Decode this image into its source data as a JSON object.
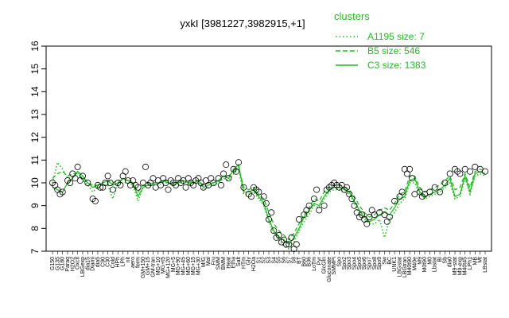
{
  "chart_data": {
    "type": "line",
    "title": "yxkI [3981227,3982915,+1]",
    "xlabel": "",
    "ylabel": "",
    "ylim": [
      7,
      16
    ],
    "yticks": [
      7,
      8,
      9,
      10,
      11,
      12,
      13,
      14,
      15,
      16
    ],
    "grid": false,
    "legend": {
      "title": "clusters",
      "placement": "top-right",
      "entries": [
        {
          "label": "A1195 size: 7",
          "style": "dotted",
          "color": "#22bb22"
        },
        {
          "label": "B5 size: 546",
          "style": "dashed",
          "color": "#22bb22"
        },
        {
          "label": "C3 size: 1383",
          "style": "solid",
          "color": "#22bb22"
        }
      ]
    },
    "x_tick_labels": [
      "G150",
      "G135",
      "G180",
      "Paraq",
      "H2O2",
      "Oxctl",
      "LBGexp",
      "dia15",
      "Diami",
      "dia5",
      "C90",
      "C30",
      "Cold",
      "HPh",
      "LPh",
      "nit",
      "aero",
      "ferm",
      "GM+150",
      "GM+15",
      "GM-tran",
      "MG+10",
      "MG+t5",
      "MG+120",
      "MG+5",
      "MG+90",
      "MG+45",
      "MG+60",
      "MG+15",
      "MG+30",
      "M/G",
      "Mal",
      "Fru",
      "SMM",
      "BMM",
      "Heat",
      "Etha",
      "Salt",
      "HTm",
      "Gly",
      "H2Oa",
      "S1",
      "S2",
      "S3",
      "S4",
      "S5",
      "S6",
      "S7",
      "S8",
      "BT",
      "B60",
      "B36",
      "LoTm",
      "Pyr",
      "GlcGln",
      "Gluconate",
      "SMMPi",
      "Spo",
      "Spo2",
      "Spo3",
      "Spo4",
      "Spo5",
      "Spo6",
      "Spo7",
      "Spo8",
      "Spo9",
      "Sw",
      "BC",
      "UNK1",
      "LBGstat",
      "LBGtran",
      "M40t90",
      "M40e",
      "M9",
      "M0t90",
      "M0",
      "Lbstat",
      "BI",
      "Sb",
      "dia0",
      "M9-stat",
      "M9-exp",
      "M40t45",
      "LPh1",
      "MB",
      "Mt",
      "LBstat"
    ],
    "series": [
      {
        "style": "solid",
        "values": [
          9.8,
          9.7,
          9.6,
          10.0,
          10.2,
          10.5,
          10.3,
          10.0,
          9.8,
          9.9,
          10.0,
          10.1,
          9.9,
          10.0,
          10.2,
          10.1,
          10.0,
          9.4,
          9.8,
          9.9,
          10.0,
          10.0,
          10.1,
          10.0,
          9.9,
          10.0,
          10.1,
          10.0,
          10.0,
          10.1,
          9.8,
          9.9,
          10.0,
          10.1,
          10.3,
          10.2,
          10.6,
          10.8,
          9.6,
          9.6,
          9.7,
          9.4,
          9.1,
          8.4,
          7.9,
          7.6,
          7.5,
          7.3,
          7.6,
          8.0,
          8.5,
          8.8,
          9.1,
          9.0,
          9.4,
          9.7,
          9.8,
          9.8,
          9.7,
          9.6,
          9.2,
          8.8,
          8.5,
          8.3,
          8.4,
          8.6,
          8.7,
          8.6,
          8.9,
          9.3,
          9.4,
          10.1,
          10.2,
          9.6,
          9.4,
          9.5,
          9.6,
          9.7,
          9.9,
          10.2,
          9.4,
          9.5,
          10.3,
          9.6,
          10.4,
          10.5,
          10.4
        ]
      },
      {
        "style": "dashed",
        "values": [
          10.2,
          10.4,
          10.5,
          10.3,
          10.4,
          10.4,
          10.2,
          10.0,
          9.9,
          9.9,
          10.0,
          10.1,
          10.0,
          10.1,
          10.1,
          10.1,
          10.0,
          9.6,
          9.9,
          10.0,
          10.0,
          10.0,
          10.1,
          10.1,
          10.0,
          10.1,
          10.1,
          10.0,
          10.1,
          10.1,
          9.9,
          10.0,
          10.0,
          10.1,
          10.3,
          10.3,
          10.5,
          10.7,
          9.8,
          9.7,
          9.8,
          9.5,
          9.3,
          8.7,
          8.2,
          7.9,
          7.7,
          7.5,
          7.8,
          8.2,
          8.6,
          8.9,
          9.3,
          9.2,
          9.6,
          9.8,
          9.9,
          9.9,
          9.8,
          9.7,
          9.4,
          9.0,
          8.7,
          8.5,
          8.6,
          8.8,
          8.9,
          8.8,
          9.1,
          9.5,
          9.6,
          10.3,
          10.3,
          9.8,
          9.6,
          9.7,
          9.8,
          9.9,
          10.1,
          10.3,
          9.7,
          9.8,
          10.4,
          9.8,
          10.5,
          10.6,
          10.5
        ]
      },
      {
        "style": "dotted",
        "values": [
          10.0,
          10.9,
          10.6,
          10.2,
          10.3,
          10.5,
          10.1,
          9.9,
          9.6,
          9.8,
          9.9,
          9.9,
          9.3,
          10.0,
          10.0,
          10.0,
          9.9,
          9.2,
          9.8,
          9.9,
          9.9,
          9.9,
          10.0,
          10.0,
          9.9,
          10.0,
          10.0,
          9.9,
          10.0,
          10.0,
          9.7,
          9.8,
          9.9,
          10.0,
          10.2,
          10.1,
          10.4,
          10.6,
          9.5,
          9.5,
          9.6,
          9.3,
          9.0,
          8.3,
          7.8,
          7.5,
          7.2,
          7.1,
          7.4,
          7.9,
          8.3,
          8.6,
          9.0,
          8.9,
          9.3,
          9.6,
          9.7,
          9.7,
          9.6,
          9.5,
          9.1,
          8.6,
          8.4,
          8.2,
          8.2,
          8.4,
          7.6,
          8.4,
          8.7,
          9.1,
          9.3,
          10.0,
          10.0,
          9.5,
          9.3,
          9.4,
          9.5,
          9.6,
          9.8,
          10.0,
          9.3,
          9.4,
          10.2,
          9.5,
          10.3,
          10.4,
          10.3
        ]
      }
    ],
    "points": [
      {
        "x": 0,
        "y": 10.0
      },
      {
        "x": 0.5,
        "y": 9.9
      },
      {
        "x": 1,
        "y": 9.7
      },
      {
        "x": 1.5,
        "y": 9.5
      },
      {
        "x": 2,
        "y": 9.6
      },
      {
        "x": 3,
        "y": 10.1
      },
      {
        "x": 3.5,
        "y": 10.0
      },
      {
        "x": 4,
        "y": 10.4
      },
      {
        "x": 4.5,
        "y": 10.2
      },
      {
        "x": 5,
        "y": 10.7
      },
      {
        "x": 5.5,
        "y": 10.1
      },
      {
        "x": 6,
        "y": 10.3
      },
      {
        "x": 7,
        "y": 10.0
      },
      {
        "x": 8,
        "y": 9.3
      },
      {
        "x": 8.5,
        "y": 9.2
      },
      {
        "x": 9,
        "y": 9.9
      },
      {
        "x": 9.5,
        "y": 9.8
      },
      {
        "x": 10,
        "y": 9.8
      },
      {
        "x": 10.5,
        "y": 10.0
      },
      {
        "x": 11,
        "y": 10.3
      },
      {
        "x": 11.5,
        "y": 10.0
      },
      {
        "x": 12,
        "y": 9.7
      },
      {
        "x": 13,
        "y": 10.0
      },
      {
        "x": 13.5,
        "y": 9.9
      },
      {
        "x": 14,
        "y": 10.3
      },
      {
        "x": 14.5,
        "y": 10.5
      },
      {
        "x": 15,
        "y": 10.1
      },
      {
        "x": 15.5,
        "y": 9.9
      },
      {
        "x": 16,
        "y": 10.1
      },
      {
        "x": 16.5,
        "y": 9.9
      },
      {
        "x": 17,
        "y": 9.8
      },
      {
        "x": 18,
        "y": 10.0
      },
      {
        "x": 18.5,
        "y": 10.7
      },
      {
        "x": 19,
        "y": 9.9
      },
      {
        "x": 19.5,
        "y": 10.0
      },
      {
        "x": 20,
        "y": 10.2
      },
      {
        "x": 20.5,
        "y": 9.8
      },
      {
        "x": 21,
        "y": 10.1
      },
      {
        "x": 21.5,
        "y": 9.9
      },
      {
        "x": 22,
        "y": 10.2
      },
      {
        "x": 22.5,
        "y": 10.0
      },
      {
        "x": 23,
        "y": 9.7
      },
      {
        "x": 23.5,
        "y": 10.1
      },
      {
        "x": 24,
        "y": 10.0
      },
      {
        "x": 24.5,
        "y": 9.9
      },
      {
        "x": 25,
        "y": 10.2
      },
      {
        "x": 25.5,
        "y": 10.0
      },
      {
        "x": 26,
        "y": 10.1
      },
      {
        "x": 26.5,
        "y": 9.8
      },
      {
        "x": 27,
        "y": 10.2
      },
      {
        "x": 27.5,
        "y": 10.0
      },
      {
        "x": 28,
        "y": 9.9
      },
      {
        "x": 28.5,
        "y": 10.1
      },
      {
        "x": 29,
        "y": 10.2
      },
      {
        "x": 29.5,
        "y": 10.0
      },
      {
        "x": 30,
        "y": 9.8
      },
      {
        "x": 30.5,
        "y": 10.1
      },
      {
        "x": 31,
        "y": 9.9
      },
      {
        "x": 31.5,
        "y": 10.2
      },
      {
        "x": 32,
        "y": 10.0
      },
      {
        "x": 33,
        "y": 10.2
      },
      {
        "x": 33.5,
        "y": 9.9
      },
      {
        "x": 34,
        "y": 10.4
      },
      {
        "x": 34.5,
        "y": 10.8
      },
      {
        "x": 35,
        "y": 10.2
      },
      {
        "x": 36,
        "y": 10.6
      },
      {
        "x": 36.5,
        "y": 10.5
      },
      {
        "x": 37,
        "y": 10.9
      },
      {
        "x": 38,
        "y": 9.8
      },
      {
        "x": 39,
        "y": 9.5
      },
      {
        "x": 39.5,
        "y": 9.4
      },
      {
        "x": 40,
        "y": 9.8
      },
      {
        "x": 40.5,
        "y": 9.7
      },
      {
        "x": 41,
        "y": 9.6
      },
      {
        "x": 42,
        "y": 9.4
      },
      {
        "x": 42.5,
        "y": 9.1
      },
      {
        "x": 43,
        "y": 8.4
      },
      {
        "x": 43.5,
        "y": 8.7
      },
      {
        "x": 44,
        "y": 7.9
      },
      {
        "x": 44.5,
        "y": 7.6
      },
      {
        "x": 45,
        "y": 7.7
      },
      {
        "x": 45.5,
        "y": 7.4
      },
      {
        "x": 46,
        "y": 7.5
      },
      {
        "x": 46.5,
        "y": 7.3
      },
      {
        "x": 47,
        "y": 7.3
      },
      {
        "x": 47.5,
        "y": 7.6
      },
      {
        "x": 48,
        "y": 7.1
      },
      {
        "x": 48.5,
        "y": 7.3
      },
      {
        "x": 49,
        "y": 8.4
      },
      {
        "x": 50,
        "y": 8.6
      },
      {
        "x": 50.5,
        "y": 8.8
      },
      {
        "x": 51,
        "y": 9.0
      },
      {
        "x": 52,
        "y": 9.3
      },
      {
        "x": 52.5,
        "y": 9.7
      },
      {
        "x": 53,
        "y": 8.8
      },
      {
        "x": 54,
        "y": 9.0
      },
      {
        "x": 54.5,
        "y": 9.7
      },
      {
        "x": 55,
        "y": 9.8
      },
      {
        "x": 55.5,
        "y": 9.9
      },
      {
        "x": 56,
        "y": 10.0
      },
      {
        "x": 56.5,
        "y": 9.9
      },
      {
        "x": 57,
        "y": 9.8
      },
      {
        "x": 57.5,
        "y": 9.9
      },
      {
        "x": 58,
        "y": 9.7
      },
      {
        "x": 58.5,
        "y": 9.8
      },
      {
        "x": 59,
        "y": 9.5
      },
      {
        "x": 59.5,
        "y": 9.3
      },
      {
        "x": 60,
        "y": 9.0
      },
      {
        "x": 60.5,
        "y": 8.7
      },
      {
        "x": 61,
        "y": 8.5
      },
      {
        "x": 61.5,
        "y": 8.6
      },
      {
        "x": 62,
        "y": 8.4
      },
      {
        "x": 62.5,
        "y": 8.2
      },
      {
        "x": 63,
        "y": 8.5
      },
      {
        "x": 63.5,
        "y": 8.8
      },
      {
        "x": 64,
        "y": 8.6
      },
      {
        "x": 65,
        "y": 8.7
      },
      {
        "x": 66,
        "y": 8.6
      },
      {
        "x": 66.5,
        "y": 8.3
      },
      {
        "x": 67,
        "y": 8.5
      },
      {
        "x": 68,
        "y": 9.2
      },
      {
        "x": 69,
        "y": 9.4
      },
      {
        "x": 69.5,
        "y": 9.6
      },
      {
        "x": 70,
        "y": 10.6
      },
      {
        "x": 70.5,
        "y": 10.4
      },
      {
        "x": 71,
        "y": 10.6
      },
      {
        "x": 71.5,
        "y": 10.2
      },
      {
        "x": 72,
        "y": 9.5
      },
      {
        "x": 73,
        "y": 9.6
      },
      {
        "x": 73.5,
        "y": 9.4
      },
      {
        "x": 74,
        "y": 9.5
      },
      {
        "x": 75,
        "y": 9.6
      },
      {
        "x": 76,
        "y": 9.8
      },
      {
        "x": 77,
        "y": 9.6
      },
      {
        "x": 78,
        "y": 10.0
      },
      {
        "x": 79,
        "y": 10.4
      },
      {
        "x": 80,
        "y": 10.6
      },
      {
        "x": 80.5,
        "y": 10.5
      },
      {
        "x": 81,
        "y": 10.4
      },
      {
        "x": 82,
        "y": 10.6
      },
      {
        "x": 83,
        "y": 10.5
      },
      {
        "x": 84,
        "y": 10.7
      },
      {
        "x": 85,
        "y": 10.6
      },
      {
        "x": 86,
        "y": 10.5
      }
    ]
  }
}
